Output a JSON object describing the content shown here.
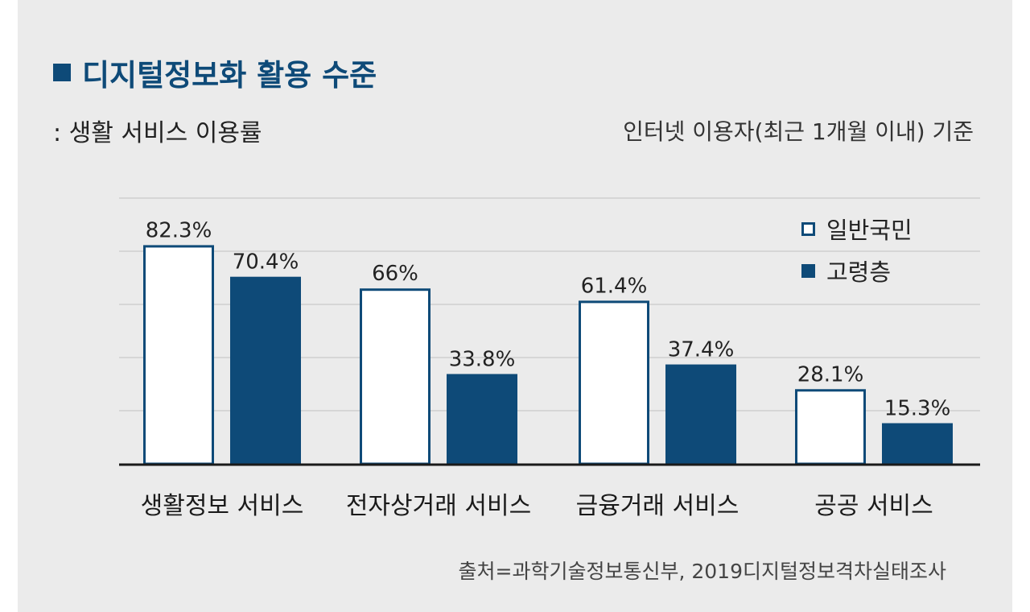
{
  "title": "디지털정보화 활용 수준",
  "subtitle": ": 생활 서비스 이용률",
  "basis_note": "인터넷 이용자(최근 1개월 이내) 기준",
  "source": "출처=과학기술정보통신부, 2019디지털정보격차실태조사",
  "colors": {
    "general_fill": "#ffffff",
    "general_stroke": "#0e4a78",
    "senior": "#0e4a78",
    "grid": "#cfcfcf",
    "axis": "#1a1a1a"
  },
  "legend": {
    "general": "일반국민",
    "senior": "고령층"
  },
  "chart_data": {
    "type": "bar",
    "categories": [
      "생활정보 서비스",
      "전자상거래 서비스",
      "금융거래 서비스",
      "공공 서비스"
    ],
    "series": [
      {
        "name": "일반국민",
        "values": [
          82.3,
          66,
          61.4,
          28.1
        ],
        "labels": [
          "82.3%",
          "66%",
          "61.4%",
          "28.1%"
        ]
      },
      {
        "name": "고령층",
        "values": [
          70.4,
          33.8,
          37.4,
          15.3
        ],
        "labels": [
          "70.4%",
          "33.8%",
          "37.4%",
          "15.3%"
        ]
      }
    ],
    "ylim": [
      0,
      100
    ],
    "grid": true,
    "legend_position": "top-right"
  }
}
